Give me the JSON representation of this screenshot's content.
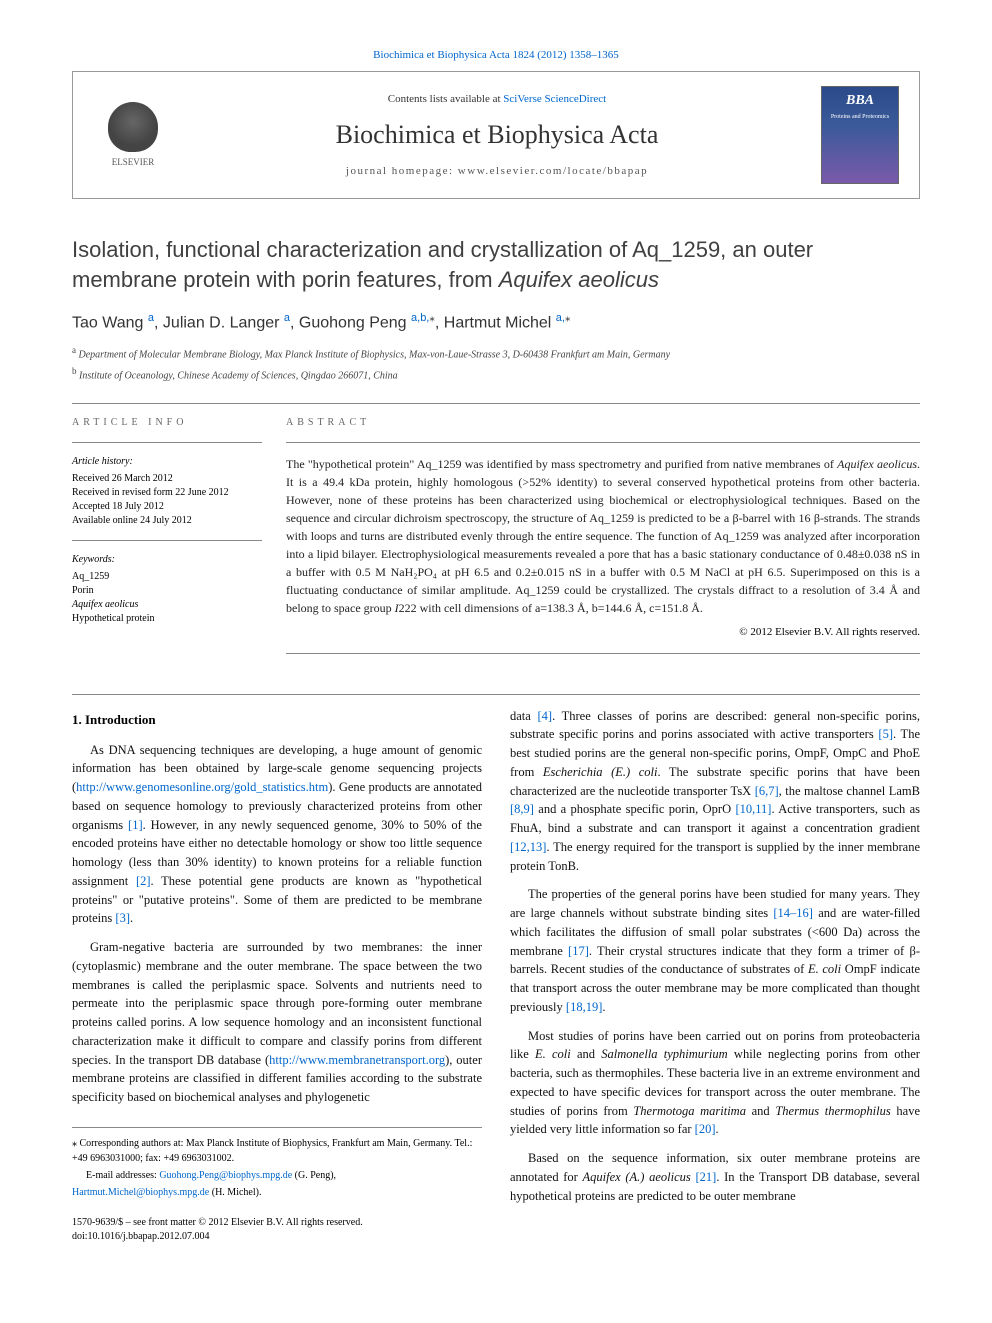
{
  "citation": "Biochimica et Biophysica Acta 1824 (2012) 1358–1365",
  "header": {
    "contents_prefix": "Contents lists available at ",
    "contents_link": "SciVerse ScienceDirect",
    "journal_title": "Biochimica et Biophysica Acta",
    "homepage_label": "journal homepage: www.elsevier.com/locate/bbapap",
    "publisher_name": "ELSEVIER",
    "cover_logo": "BBA",
    "cover_sub": "Proteins and Proteomics"
  },
  "title": {
    "main": "Isolation, functional characterization and crystallization of Aq_1259, an outer membrane protein with porin features, from ",
    "italic_tail": "Aquifex aeolicus"
  },
  "authors": [
    {
      "name": "Tao Wang",
      "affs": "a",
      "star": false
    },
    {
      "name": "Julian D. Langer",
      "affs": "a",
      "star": false
    },
    {
      "name": "Guohong Peng",
      "affs": "a,b,",
      "star": true
    },
    {
      "name": "Hartmut Michel",
      "affs": "a,",
      "star": true
    }
  ],
  "affiliations": [
    {
      "sup": "a",
      "text": "Department of Molecular Membrane Biology, Max Planck Institute of Biophysics, Max-von-Laue-Strasse 3, D-60438 Frankfurt am Main, Germany"
    },
    {
      "sup": "b",
      "text": "Institute of Oceanology, Chinese Academy of Sciences, Qingdao 266071, China"
    }
  ],
  "info": {
    "heading": "ARTICLE INFO",
    "history_label": "Article history:",
    "history": [
      "Received 26 March 2012",
      "Received in revised form 22 June 2012",
      "Accepted 18 July 2012",
      "Available online 24 July 2012"
    ],
    "keywords_label": "Keywords:",
    "keywords": [
      "Aq_1259",
      "Porin",
      "Aquifex aeolicus",
      "Hypothetical protein"
    ]
  },
  "abstract": {
    "heading": "ABSTRACT",
    "text_parts": [
      "The \"hypothetical protein\" Aq_1259 was identified by mass spectrometry and purified from native membranes of ",
      "Aquifex aeolicus",
      ". It is a 49.4 kDa protein, highly homologous (>52% identity) to several conserved hypothetical proteins from other bacteria. However, none of these proteins has been characterized using biochemical or electrophysiological techniques. Based on the sequence and circular dichroism spectroscopy, the structure of Aq_1259 is predicted to be a β-barrel with 16 β-strands. The strands with loops and turns are distributed evenly through the entire sequence. The function of Aq_1259 was analyzed after incorporation into a lipid bilayer. Electrophysiological measurements revealed a pore that has a basic stationary conductance of 0.48±0.038 nS in a buffer with 0.5 M NaH₂PO₄ at pH 6.5 and 0.2±0.015 nS in a buffer with 0.5 M NaCl at pH 6.5. Superimposed on this is a fluctuating conductance of similar amplitude. Aq_1259 could be crystallized. The crystals diffract to a resolution of 3.4 Å and belong to space group ",
      "I",
      "222 with cell dimensions of a=138.3 Å, b=144.6 Å, c=151.8 Å."
    ],
    "copyright": "© 2012 Elsevier B.V. All rights reserved."
  },
  "sections": {
    "intro_heading": "1. Introduction"
  },
  "body": {
    "col1": {
      "p1_a": "As DNA sequencing techniques are developing, a huge amount of genomic information has been obtained by large-scale genome sequencing projects (",
      "p1_link": "http://www.genomesonline.org/gold_statistics.htm",
      "p1_b": "). Gene products are annotated based on sequence homology to previously characterized proteins from other organisms ",
      "p1_ref1": "[1]",
      "p1_c": ". However, in any newly sequenced genome, 30% to 50% of the encoded proteins have either no detectable homology or show too little sequence homology (less than 30% identity) to known proteins for a reliable function assignment ",
      "p1_ref2": "[2]",
      "p1_d": ". These potential gene products are known as \"hypothetical proteins\" or \"putative proteins\". Some of them are predicted to be membrane proteins ",
      "p1_ref3": "[3]",
      "p1_e": ".",
      "p2_a": "Gram-negative bacteria are surrounded by two membranes: the inner (cytoplasmic) membrane and the outer membrane. The space between the two membranes is called the periplasmic space. Solvents and nutrients need to permeate into the periplasmic space through pore-forming outer membrane proteins called porins. A low sequence homology and an inconsistent functional characterization make it difficult to compare and classify porins from different species. In the transport DB database (",
      "p2_link": "http://www.membranetransport.org",
      "p2_b": "), outer membrane proteins are classified in different families according to the substrate specificity based on biochemical analyses and phylogenetic"
    },
    "col2": {
      "p1_a": "data ",
      "p1_ref4": "[4]",
      "p1_b": ". Three classes of porins are described: general non-specific porins, substrate specific porins and porins associated with active transporters ",
      "p1_ref5": "[5]",
      "p1_c": ". The best studied porins are the general non-specific porins, OmpF, OmpC and PhoE from ",
      "p1_it1": "Escherichia (E.) coli",
      "p1_d": ". The substrate specific porins that have been characterized are the nucleotide transporter TsX ",
      "p1_ref67": "[6,7]",
      "p1_e": ", the maltose channel LamB ",
      "p1_ref89": "[8,9]",
      "p1_f": " and a phosphate specific porin, OprO ",
      "p1_ref1011": "[10,11]",
      "p1_g": ". Active transporters, such as FhuA, bind a substrate and can transport it against a concentration gradient ",
      "p1_ref1213": "[12,13]",
      "p1_h": ". The energy required for the transport is supplied by the inner membrane protein TonB.",
      "p2_a": "The properties of the general porins have been studied for many years. They are large channels without substrate binding sites ",
      "p2_ref1416": "[14–16]",
      "p2_b": " and are water-filled which facilitates the diffusion of small polar substrates (<600 Da) across the membrane ",
      "p2_ref17": "[17]",
      "p2_c": ". Their crystal structures indicate that they form a trimer of β-barrels. Recent studies of the conductance of substrates of ",
      "p2_it1": "E. coli",
      "p2_d": " OmpF indicate that transport across the outer membrane may be more complicated than thought previously ",
      "p2_ref1819": "[18,19]",
      "p2_e": ".",
      "p3_a": "Most studies of porins have been carried out on porins from proteobacteria like ",
      "p3_it1": "E. coli",
      "p3_b": " and ",
      "p3_it2": "Salmonella typhimurium",
      "p3_c": " while neglecting porins from other bacteria, such as thermophiles. These bacteria live in an extreme environment and expected to have specific devices for transport across the outer membrane. The studies of porins from ",
      "p3_it3": "Thermotoga maritima",
      "p3_d": " and ",
      "p3_it4": "Thermus thermophilus",
      "p3_e": " have yielded very little information so far ",
      "p3_ref20": "[20]",
      "p3_f": ".",
      "p4_a": "Based on the sequence information, six outer membrane proteins are annotated for ",
      "p4_it1": "Aquifex (A.) aeolicus",
      "p4_b": " ",
      "p4_ref21": "[21]",
      "p4_c": ". In the Transport DB database, several hypothetical proteins are predicted to be outer membrane"
    }
  },
  "footnotes": {
    "corr": "⁎ Corresponding authors at: Max Planck Institute of Biophysics, Frankfurt am Main, Germany. Tel.: +49 6963031000; fax: +49 6963031002.",
    "email_label": "E-mail addresses:",
    "emails": [
      {
        "addr": "Guohong.Peng@biophys.mpg.de",
        "who": "(G. Peng),"
      },
      {
        "addr": "Hartmut.Michel@biophys.mpg.de",
        "who": "(H. Michel)."
      }
    ]
  },
  "pub_footer": {
    "line1": "1570-9639/$ – see front matter © 2012 Elsevier B.V. All rights reserved.",
    "line2": "doi:10.1016/j.bbapap.2012.07.004"
  },
  "colors": {
    "link": "#0066cc",
    "text": "#000000",
    "rule": "#888888"
  }
}
